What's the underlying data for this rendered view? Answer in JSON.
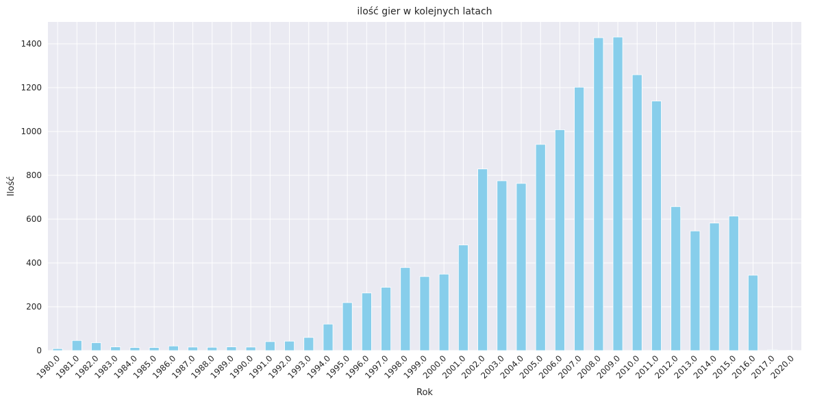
{
  "chart_data": {
    "type": "bar",
    "title": "ilość gier w kolejnych latach",
    "xlabel": "Rok",
    "ylabel": "Ilość",
    "categories": [
      "1980.0",
      "1981.0",
      "1982.0",
      "1983.0",
      "1984.0",
      "1985.0",
      "1986.0",
      "1987.0",
      "1988.0",
      "1989.0",
      "1990.0",
      "1991.0",
      "1992.0",
      "1993.0",
      "1994.0",
      "1995.0",
      "1996.0",
      "1997.0",
      "1998.0",
      "1999.0",
      "2000.0",
      "2001.0",
      "2002.0",
      "2003.0",
      "2004.0",
      "2005.0",
      "2006.0",
      "2007.0",
      "2008.0",
      "2009.0",
      "2010.0",
      "2011.0",
      "2012.0",
      "2013.0",
      "2014.0",
      "2015.0",
      "2016.0",
      "2017.0",
      "2020.0"
    ],
    "values": [
      9,
      46,
      36,
      17,
      14,
      14,
      21,
      16,
      15,
      17,
      16,
      41,
      43,
      60,
      121,
      219,
      263,
      289,
      379,
      338,
      349,
      482,
      829,
      775,
      763,
      941,
      1008,
      1202,
      1428,
      1431,
      1259,
      1139,
      657,
      546,
      582,
      614,
      344,
      3,
      1
    ],
    "ylim": [
      0,
      1500
    ],
    "yticks": [
      0,
      200,
      400,
      600,
      800,
      1000,
      1200,
      1400
    ],
    "ytick_labels": [
      "0",
      "200",
      "400",
      "600",
      "800",
      "1000",
      "1200",
      "1400"
    ],
    "grid": true,
    "bar_color": "#87ceeb",
    "background_color": "#eaeaf2"
  }
}
